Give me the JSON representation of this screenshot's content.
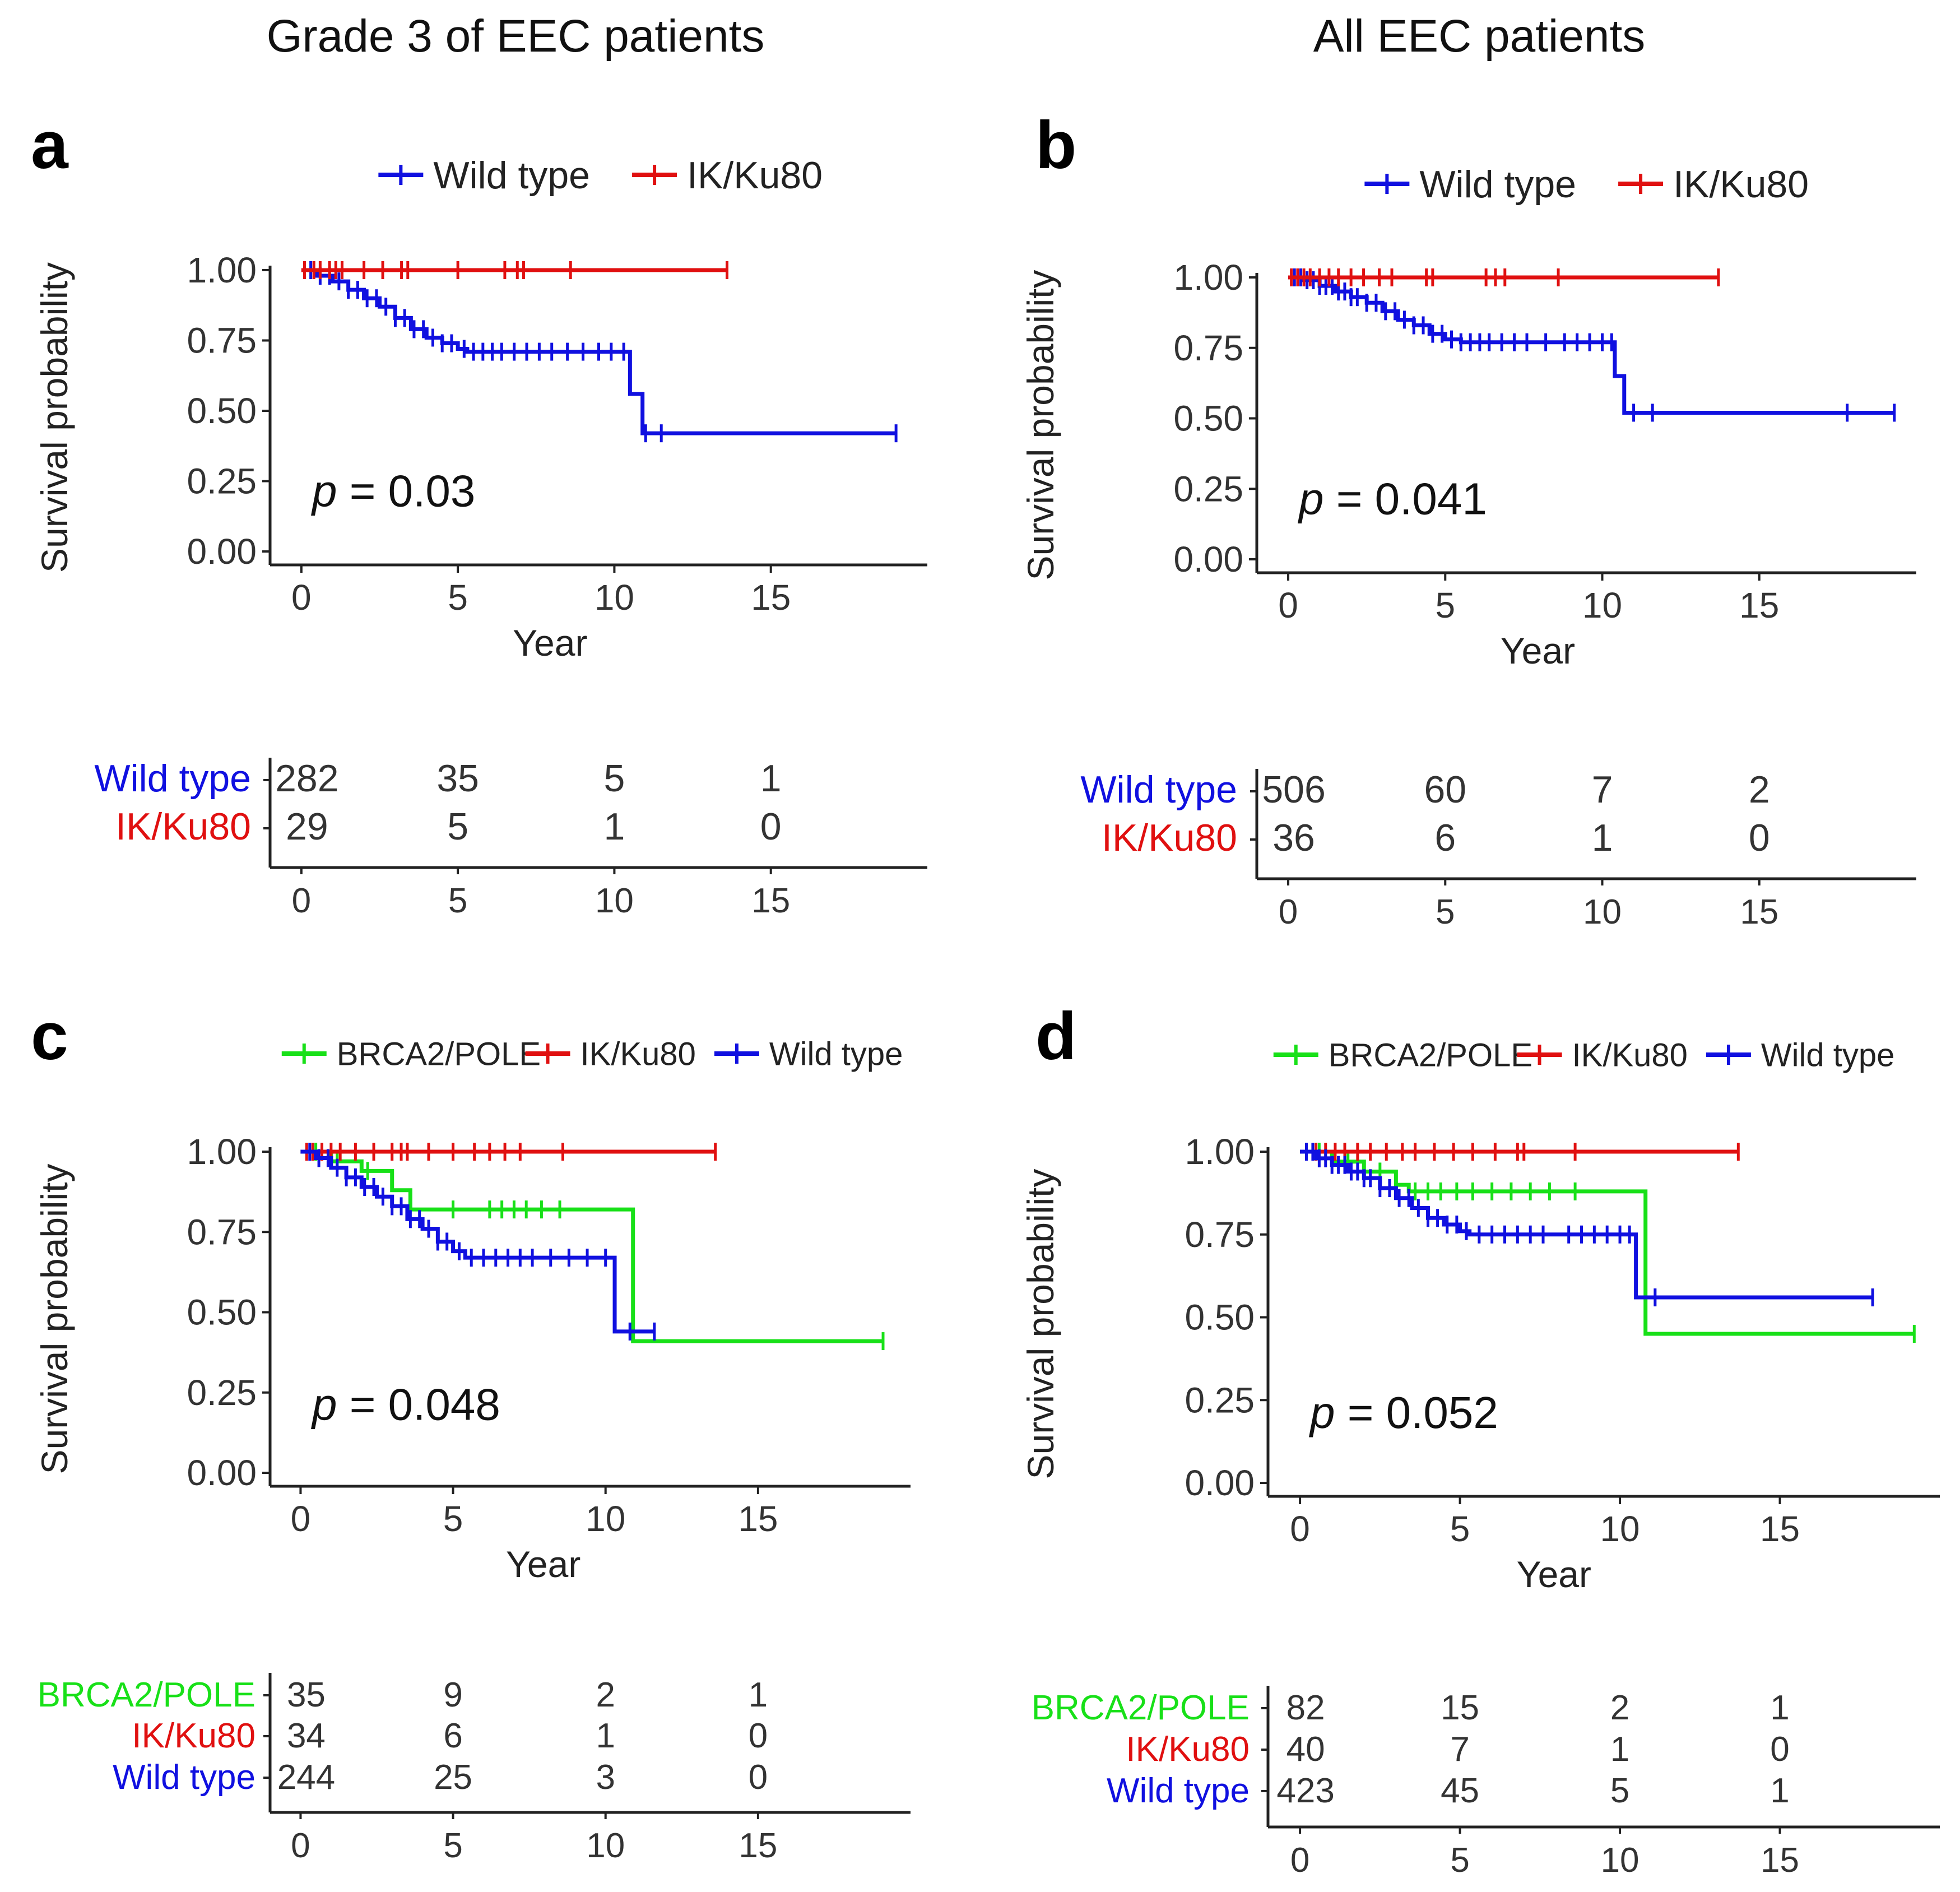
{
  "page": {
    "left_title": "Grade 3 of EEC patients",
    "right_title": "All EEC patients"
  },
  "colors": {
    "wild_type": "#1010e0",
    "ik_ku80": "#e01010",
    "brca2_pole": "#18e018",
    "axis": "#222222"
  },
  "chart_data": [
    {
      "id": "a",
      "panel_label": "a",
      "type": "line",
      "subtype": "kaplan-meier",
      "legend": [
        "Wild type",
        "IK/Ku80"
      ],
      "legend_placement": "top",
      "xlabel": "Year",
      "ylabel": "Survival probability",
      "xlim": [
        -1,
        20
      ],
      "ylim": [
        0,
        1
      ],
      "x_ticks": [
        "0",
        "5",
        "10",
        "15"
      ],
      "y_ticks": [
        "0.00",
        "0.25",
        "0.50",
        "0.75",
        "1.00"
      ],
      "p_label": "p",
      "p_value": "= 0.03",
      "series": [
        {
          "name": "Wild type",
          "color_key": "wild_type",
          "steps": [
            [
              0,
              1.0
            ],
            [
              0.5,
              0.98
            ],
            [
              1,
              0.96
            ],
            [
              1.5,
              0.93
            ],
            [
              2,
              0.9
            ],
            [
              2.5,
              0.87
            ],
            [
              3,
              0.83
            ],
            [
              3.5,
              0.79
            ],
            [
              4,
              0.76
            ],
            [
              4.5,
              0.74
            ],
            [
              5,
              0.72
            ],
            [
              5.3,
              0.71
            ],
            [
              10.5,
              0.56
            ],
            [
              10.9,
              0.42
            ],
            [
              19,
              0.42
            ]
          ],
          "censor": [
            0.3,
            0.6,
            0.9,
            1.2,
            1.5,
            1.8,
            2.1,
            2.4,
            2.7,
            3.0,
            3.3,
            3.6,
            3.9,
            4.2,
            4.5,
            4.8,
            5.2,
            5.5,
            5.8,
            6.1,
            6.4,
            6.8,
            7.2,
            7.6,
            8.0,
            8.5,
            9.0,
            9.5,
            9.9,
            10.3,
            11.0,
            11.5,
            19.0
          ]
        },
        {
          "name": "IK/Ku80",
          "color_key": "ik_ku80",
          "steps": [
            [
              0,
              1.0
            ],
            [
              13.6,
              1.0
            ]
          ],
          "censor": [
            0.1,
            0.4,
            0.6,
            0.9,
            1.1,
            1.3,
            2.0,
            2.6,
            3.2,
            3.4,
            5.0,
            6.5,
            6.9,
            7.1,
            8.6,
            13.6
          ]
        }
      ],
      "risk_table": {
        "rows": [
          {
            "name": "Wild type",
            "color_key": "wild_type",
            "values": [
              "282",
              "35",
              "5",
              "1"
            ]
          },
          {
            "name": "IK/Ku80",
            "color_key": "ik_ku80",
            "values": [
              "29",
              "5",
              "1",
              "0"
            ]
          }
        ],
        "times": [
          0,
          5,
          10,
          15
        ],
        "x_ticks": [
          "0",
          "5",
          "10",
          "15"
        ]
      }
    },
    {
      "id": "b",
      "panel_label": "b",
      "type": "line",
      "subtype": "kaplan-meier",
      "legend": [
        "Wild type",
        "IK/Ku80"
      ],
      "legend_placement": "top",
      "xlabel": "Year",
      "ylabel": "Survival probability",
      "xlim": [
        -1,
        20
      ],
      "ylim": [
        0,
        1
      ],
      "x_ticks": [
        "0",
        "5",
        "10",
        "15"
      ],
      "y_ticks": [
        "0.00",
        "0.25",
        "0.50",
        "0.75",
        "1.00"
      ],
      "p_label": "p",
      "p_value": "= 0.041",
      "series": [
        {
          "name": "Wild type",
          "color_key": "wild_type",
          "steps": [
            [
              0,
              1.0
            ],
            [
              0.5,
              0.99
            ],
            [
              1,
              0.97
            ],
            [
              1.5,
              0.95
            ],
            [
              2,
              0.93
            ],
            [
              2.5,
              0.91
            ],
            [
              3,
              0.88
            ],
            [
              3.5,
              0.85
            ],
            [
              4,
              0.83
            ],
            [
              4.5,
              0.8
            ],
            [
              5,
              0.78
            ],
            [
              5.5,
              0.77
            ],
            [
              10.4,
              0.65
            ],
            [
              10.7,
              0.52
            ],
            [
              19.3,
              0.52
            ]
          ],
          "censor": [
            0.2,
            0.4,
            0.6,
            0.8,
            1.0,
            1.2,
            1.4,
            1.6,
            1.8,
            2.0,
            2.2,
            2.5,
            2.8,
            3.1,
            3.4,
            3.7,
            4.0,
            4.3,
            4.6,
            4.9,
            5.2,
            5.5,
            5.8,
            6.1,
            6.4,
            6.8,
            7.2,
            7.6,
            8.2,
            8.8,
            9.2,
            9.6,
            10.0,
            10.3,
            11.0,
            11.6,
            17.8,
            19.3
          ]
        },
        {
          "name": "IK/Ku80",
          "color_key": "ik_ku80",
          "steps": [
            [
              0,
              1.0
            ],
            [
              13.7,
              1.0
            ]
          ],
          "censor": [
            0.1,
            0.3,
            0.5,
            0.7,
            1.0,
            1.3,
            1.6,
            2.0,
            2.4,
            2.9,
            3.3,
            4.4,
            4.6,
            6.3,
            6.6,
            6.9,
            8.6,
            13.7
          ]
        }
      ],
      "risk_table": {
        "rows": [
          {
            "name": "Wild type",
            "color_key": "wild_type",
            "values": [
              "506",
              "60",
              "7",
              "2"
            ]
          },
          {
            "name": "IK/Ku80",
            "color_key": "ik_ku80",
            "values": [
              "36",
              "6",
              "1",
              "0"
            ]
          }
        ],
        "times": [
          0,
          5,
          10,
          15
        ],
        "x_ticks": [
          "0",
          "5",
          "10",
          "15"
        ]
      }
    },
    {
      "id": "c",
      "panel_label": "c",
      "type": "line",
      "subtype": "kaplan-meier",
      "legend": [
        "BRCA2/POLE",
        "IK/Ku80",
        "Wild type"
      ],
      "legend_placement": "top",
      "xlabel": "Year",
      "ylabel": "Survival probability",
      "xlim": [
        -1,
        20
      ],
      "ylim": [
        0,
        1
      ],
      "x_ticks": [
        "0",
        "5",
        "10",
        "15"
      ],
      "y_ticks": [
        "0.00",
        "0.25",
        "0.50",
        "0.75",
        "1.00"
      ],
      "p_label": "p",
      "p_value": "= 0.048",
      "series": [
        {
          "name": "BRCA2/POLE",
          "color_key": "brca2_pole",
          "steps": [
            [
              0,
              1.0
            ],
            [
              1,
              0.97
            ],
            [
              2,
              0.94
            ],
            [
              3,
              0.88
            ],
            [
              3.6,
              0.82
            ],
            [
              10.9,
              0.41
            ],
            [
              19.1,
              0.41
            ]
          ],
          "censor": [
            0.5,
            1.2,
            2.2,
            5.0,
            6.2,
            6.6,
            7.0,
            7.4,
            7.9,
            8.5,
            19.1
          ]
        },
        {
          "name": "IK/Ku80",
          "color_key": "ik_ku80",
          "steps": [
            [
              0,
              1.0
            ],
            [
              13.6,
              1.0
            ]
          ],
          "censor": [
            0.2,
            0.4,
            0.7,
            1.0,
            1.3,
            1.8,
            2.4,
            3.0,
            3.3,
            3.5,
            4.2,
            5.0,
            5.7,
            6.2,
            6.7,
            7.2,
            8.6,
            13.6
          ]
        },
        {
          "name": "Wild type",
          "color_key": "wild_type",
          "steps": [
            [
              0,
              1.0
            ],
            [
              0.5,
              0.98
            ],
            [
              1,
              0.95
            ],
            [
              1.5,
              0.92
            ],
            [
              2,
              0.89
            ],
            [
              2.5,
              0.86
            ],
            [
              3,
              0.83
            ],
            [
              3.5,
              0.79
            ],
            [
              4,
              0.76
            ],
            [
              4.5,
              0.72
            ],
            [
              5,
              0.69
            ],
            [
              5.4,
              0.67
            ],
            [
              10.3,
              0.44
            ],
            [
              11.6,
              0.44
            ]
          ],
          "censor": [
            0.3,
            0.6,
            0.9,
            1.2,
            1.5,
            1.8,
            2.1,
            2.4,
            2.7,
            3.0,
            3.3,
            3.6,
            3.9,
            4.2,
            4.5,
            4.8,
            5.2,
            5.6,
            6.0,
            6.4,
            6.8,
            7.2,
            7.6,
            8.2,
            8.8,
            9.4,
            10.0,
            10.8,
            11.6
          ]
        }
      ],
      "risk_table": {
        "rows": [
          {
            "name": "BRCA2/POLE",
            "color_key": "brca2_pole",
            "values": [
              "35",
              "9",
              "2",
              "1"
            ]
          },
          {
            "name": "IK/Ku80",
            "color_key": "ik_ku80",
            "values": [
              "34",
              "6",
              "1",
              "0"
            ]
          },
          {
            "name": "Wild type",
            "color_key": "wild_type",
            "values": [
              "244",
              "25",
              "3",
              "0"
            ]
          }
        ],
        "times": [
          0,
          5,
          10,
          15
        ],
        "x_ticks": [
          "0",
          "5",
          "10",
          "15"
        ]
      }
    },
    {
      "id": "d",
      "panel_label": "d",
      "type": "line",
      "subtype": "kaplan-meier",
      "legend": [
        "BRCA2/POLE",
        "IK/Ku80",
        "Wild type"
      ],
      "legend_placement": "top",
      "xlabel": "Year",
      "ylabel": "Survival probability",
      "xlim": [
        -1,
        20
      ],
      "ylim": [
        0,
        1
      ],
      "x_ticks": [
        "0",
        "5",
        "10",
        "15"
      ],
      "y_ticks": [
        "0.00",
        "0.25",
        "0.50",
        "0.75",
        "1.00"
      ],
      "p_label": "p",
      "p_value": "= 0.052",
      "series": [
        {
          "name": "BRCA2/POLE",
          "color_key": "brca2_pole",
          "steps": [
            [
              0,
              1.0
            ],
            [
              1,
              0.97
            ],
            [
              2,
              0.94
            ],
            [
              3,
              0.9
            ],
            [
              3.4,
              0.88
            ],
            [
              10.8,
              0.45
            ],
            [
              19.2,
              0.45
            ]
          ],
          "censor": [
            0.6,
            1.5,
            2.5,
            3.6,
            4.0,
            4.4,
            4.9,
            5.4,
            6.0,
            6.6,
            7.2,
            7.8,
            8.6,
            19.2
          ]
        },
        {
          "name": "IK/Ku80",
          "color_key": "ik_ku80",
          "steps": [
            [
              0,
              1.0
            ],
            [
              13.7,
              1.0
            ]
          ],
          "censor": [
            0.2,
            0.5,
            0.8,
            1.1,
            1.4,
            1.8,
            2.2,
            2.7,
            3.2,
            3.6,
            4.2,
            4.8,
            5.4,
            6.1,
            6.8,
            7.0,
            8.6,
            13.7
          ]
        },
        {
          "name": "Wild type",
          "color_key": "wild_type",
          "steps": [
            [
              0,
              1.0
            ],
            [
              0.5,
              0.98
            ],
            [
              1,
              0.96
            ],
            [
              1.5,
              0.94
            ],
            [
              2,
              0.92
            ],
            [
              2.5,
              0.89
            ],
            [
              3,
              0.86
            ],
            [
              3.5,
              0.83
            ],
            [
              4,
              0.8
            ],
            [
              4.5,
              0.78
            ],
            [
              5,
              0.76
            ],
            [
              5.3,
              0.75
            ],
            [
              10.5,
              0.56
            ],
            [
              17.9,
              0.56
            ]
          ],
          "censor": [
            0.2,
            0.4,
            0.6,
            0.8,
            1.0,
            1.2,
            1.4,
            1.6,
            1.8,
            2.0,
            2.2,
            2.5,
            2.8,
            3.1,
            3.4,
            3.7,
            4.0,
            4.3,
            4.6,
            4.9,
            5.2,
            5.6,
            6.0,
            6.4,
            6.8,
            7.2,
            7.6,
            8.4,
            8.8,
            9.2,
            9.6,
            10.0,
            10.3,
            11.1,
            17.9
          ]
        }
      ],
      "risk_table": {
        "rows": [
          {
            "name": "BRCA2/POLE",
            "color_key": "brca2_pole",
            "values": [
              "82",
              "15",
              "2",
              "1"
            ]
          },
          {
            "name": "IK/Ku80",
            "color_key": "ik_ku80",
            "values": [
              "40",
              "7",
              "1",
              "0"
            ]
          },
          {
            "name": "Wild type",
            "color_key": "wild_type",
            "values": [
              "423",
              "45",
              "5",
              "1"
            ]
          }
        ],
        "times": [
          0,
          5,
          10,
          15
        ],
        "x_ticks": [
          "0",
          "5",
          "10",
          "15"
        ]
      }
    }
  ]
}
